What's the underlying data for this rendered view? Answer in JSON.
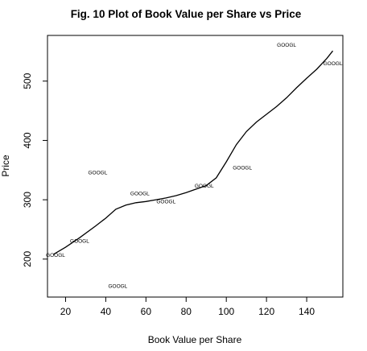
{
  "chart_data": {
    "type": "scatter",
    "title": "Fig. 10 Plot of Book Value per Share vs Price",
    "xlabel": "Book Value per Share",
    "ylabel": "Price",
    "xlim": [
      11,
      158
    ],
    "ylim": [
      136,
      577
    ],
    "x_ticks": [
      20,
      40,
      60,
      80,
      100,
      120,
      140
    ],
    "y_ticks": [
      200,
      300,
      400,
      500
    ],
    "point_marker_text": "GOOGL",
    "points": [
      {
        "x": 15,
        "y": 207
      },
      {
        "x": 27,
        "y": 231
      },
      {
        "x": 36,
        "y": 346
      },
      {
        "x": 46,
        "y": 155
      },
      {
        "x": 57,
        "y": 311
      },
      {
        "x": 70,
        "y": 297
      },
      {
        "x": 89,
        "y": 324
      },
      {
        "x": 108,
        "y": 354
      },
      {
        "x": 130,
        "y": 561
      },
      {
        "x": 153,
        "y": 530
      }
    ],
    "smooth_line": [
      [
        14,
        208
      ],
      [
        20,
        220
      ],
      [
        27,
        236
      ],
      [
        35,
        256
      ],
      [
        40,
        269
      ],
      [
        45,
        284
      ],
      [
        50,
        291
      ],
      [
        55,
        295
      ],
      [
        60,
        297
      ],
      [
        65,
        300
      ],
      [
        70,
        303
      ],
      [
        75,
        307
      ],
      [
        80,
        312
      ],
      [
        85,
        318
      ],
      [
        90,
        324
      ],
      [
        95,
        337
      ],
      [
        100,
        364
      ],
      [
        105,
        393
      ],
      [
        110,
        415
      ],
      [
        115,
        431
      ],
      [
        120,
        444
      ],
      [
        125,
        457
      ],
      [
        130,
        472
      ],
      [
        135,
        489
      ],
      [
        140,
        505
      ],
      [
        145,
        520
      ],
      [
        150,
        538
      ],
      [
        153,
        551
      ]
    ],
    "grid": false,
    "legend": "none"
  }
}
